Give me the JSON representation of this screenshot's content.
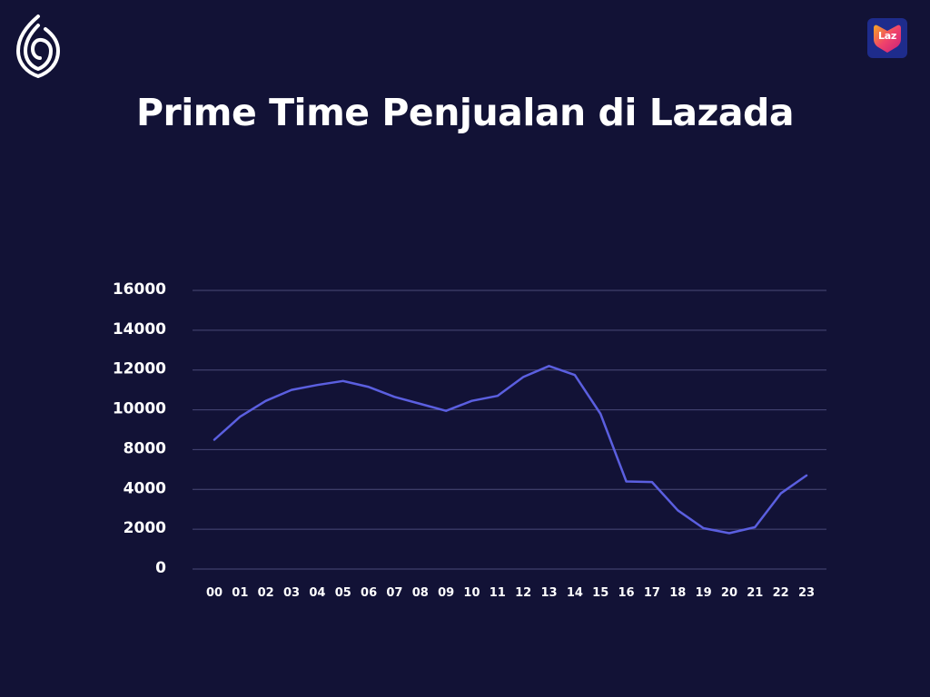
{
  "title": "Prime Time Penjualan di Lazada",
  "brand": {
    "logo_icon": "leaf-shield-logo",
    "badge_icon": "lazada-heart-icon",
    "badge_text": "Laz",
    "badge_colors": [
      "#f5a623",
      "#f0436b",
      "#c8207a"
    ]
  },
  "colors": {
    "background": "#121236",
    "line": "#5b5fe0",
    "grid": "#4a4a78",
    "text": "#ffffff"
  },
  "chart_data": {
    "type": "line",
    "title": "Prime Time Penjualan di Lazada",
    "xlabel": "",
    "ylabel": "",
    "grid": true,
    "legend": "none",
    "y_tick_labels": [
      "0",
      "2000",
      "4000",
      "8000",
      "10000",
      "12000",
      "14000",
      "16000"
    ],
    "categories": [
      "00",
      "01",
      "02",
      "03",
      "04",
      "05",
      "06",
      "07",
      "08",
      "09",
      "10",
      "11",
      "12",
      "13",
      "14",
      "15",
      "16",
      "17",
      "18",
      "19",
      "20",
      "21",
      "22",
      "23"
    ],
    "series": [
      {
        "values": [
          8500,
          9650,
          10450,
          11000,
          11250,
          11450,
          11150,
          10650,
          10300,
          9950,
          10450,
          10700,
          11650,
          12200,
          11750,
          9800,
          4800,
          4750,
          2950,
          2050,
          1800,
          2100,
          3800,
          5400
        ]
      }
    ]
  }
}
